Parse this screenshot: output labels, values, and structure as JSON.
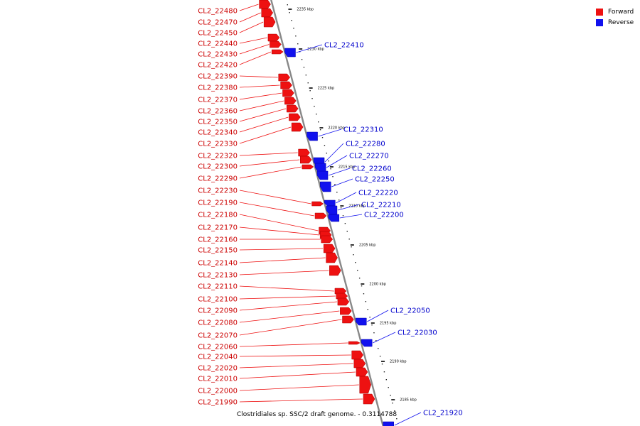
{
  "colors": {
    "forward": "#ee1111",
    "reverse": "#1111ee",
    "backbone": "#888888"
  },
  "legend": [
    {
      "label": "Forward",
      "strand": "forward"
    },
    {
      "label": "Reverse",
      "strand": "reverse"
    }
  ],
  "caption": "Clostridiales sp. SSC/2 draft genome. - 0.3114788",
  "ticks": [
    "2235 kbp",
    "2230 kbp",
    "2225 kbp",
    "2220 kbp",
    "2215 kbp",
    "2210 kbp",
    "2205 kbp",
    "2200 kbp",
    "2195 kbp",
    "2190 kbp",
    "2185 kbp"
  ],
  "forward_genes": [
    "CL2_22480",
    "CL2_22470",
    "CL2_22450",
    "CL2_22440",
    "CL2_22430",
    "CL2_22420",
    "CL2_22390",
    "CL2_22380",
    "CL2_22370",
    "CL2_22360",
    "CL2_22350",
    "CL2_22340",
    "CL2_22330",
    "CL2_22320",
    "CL2_22300",
    "CL2_22290",
    "CL2_22230",
    "CL2_22190",
    "CL2_22180",
    "CL2_22170",
    "CL2_22160",
    "CL2_22150",
    "CL2_22140",
    "CL2_22130",
    "CL2_22110",
    "CL2_22100",
    "CL2_22090",
    "CL2_22080",
    "CL2_22070",
    "CL2_22060",
    "CL2_22040",
    "CL2_22020",
    "CL2_22010",
    "CL2_22000",
    "CL2_21990"
  ],
  "reverse_genes": [
    "CL2_22410",
    "CL2_22310",
    "CL2_22280",
    "CL2_22270",
    "CL2_22260",
    "CL2_22250",
    "CL2_22220",
    "CL2_22210",
    "CL2_22200",
    "CL2_22050",
    "CL2_22030",
    "CL2_21920"
  ]
}
